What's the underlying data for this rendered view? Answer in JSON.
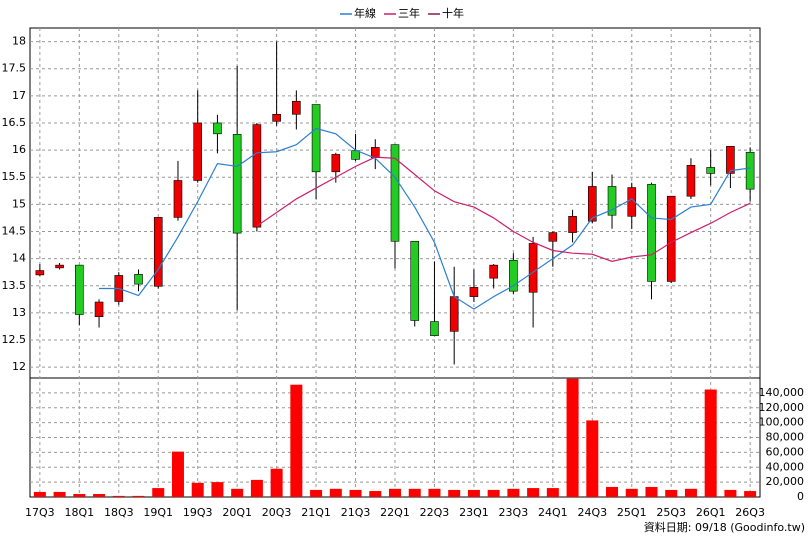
{
  "chart_data": [
    {
      "type": "candlestick",
      "categories": [
        "17Q3",
        null,
        "18Q1",
        null,
        "18Q3",
        null,
        "19Q1",
        null,
        "19Q3",
        null,
        "20Q1",
        null,
        "20Q3",
        null,
        "21Q1",
        null,
        "21Q3",
        null,
        "22Q1",
        null,
        "22Q3",
        null,
        "23Q1",
        null,
        "23Q3",
        null,
        "24Q1",
        null,
        "24Q3",
        null,
        "25Q1",
        null,
        "25Q3",
        null,
        "26Q1",
        null,
        "26Q3"
      ],
      "open": [
        13.7,
        13.83,
        13.88,
        12.93,
        13.21,
        13.71,
        13.49,
        14.76,
        15.44,
        16.5,
        16.29,
        14.58,
        16.53,
        16.66,
        16.84,
        15.6,
        15.99,
        15.86,
        16.1,
        14.32,
        12.84,
        12.66,
        13.3,
        13.64,
        13.97,
        13.38,
        14.32,
        14.48,
        14.69,
        15.33,
        14.78,
        15.37,
        13.58,
        15.15,
        15.68,
        15.57,
        15.96
      ],
      "high": [
        13.9,
        13.92,
        13.88,
        13.25,
        13.75,
        13.8,
        14.76,
        15.8,
        17.1,
        16.65,
        17.55,
        16.5,
        18,
        17.1,
        16.84,
        15.95,
        16.3,
        16.2,
        16.1,
        14.3,
        13.95,
        13.85,
        13.8,
        13.9,
        14.1,
        14.4,
        14.5,
        14.9,
        15.6,
        15.55,
        15.4,
        15.4,
        15.15,
        15.85,
        16,
        16.07,
        16.05
      ],
      "low": [
        13.68,
        13.8,
        12.77,
        12.73,
        13.15,
        13.4,
        13.45,
        14.7,
        15.4,
        15.94,
        13.05,
        14.5,
        16.45,
        16.38,
        15.09,
        15.4,
        15.8,
        15.65,
        13.82,
        12.75,
        12.58,
        12.05,
        13.2,
        13.45,
        13.35,
        12.73,
        13.85,
        14.3,
        14.65,
        14.55,
        14.55,
        13.25,
        13.55,
        15.1,
        15.35,
        15.3,
        15.05
      ],
      "close": [
        13.78,
        13.88,
        12.97,
        13.2,
        13.69,
        13.53,
        14.76,
        15.44,
        16.5,
        16.3,
        14.47,
        16.47,
        16.66,
        16.9,
        15.6,
        15.92,
        15.83,
        16.05,
        14.32,
        12.86,
        12.58,
        13.3,
        13.47,
        13.88,
        13.4,
        14.28,
        14.48,
        14.78,
        15.33,
        14.8,
        15.31,
        13.58,
        15.15,
        15.72,
        15.57,
        16.07,
        15.28
      ],
      "up_color": "#ee0000",
      "down_color": "#22cc22",
      "series": [
        {
          "name": "年線",
          "color": "#2a7fd4",
          "values": [
            null,
            null,
            null,
            13.45,
            13.45,
            13.32,
            13.8,
            14.4,
            15.05,
            15.75,
            15.7,
            15.95,
            15.97,
            16.1,
            16.4,
            16.3,
            16.0,
            15.85,
            15.5,
            14.95,
            14.3,
            13.3,
            13.07,
            13.3,
            13.5,
            13.75,
            14.0,
            14.25,
            14.75,
            14.9,
            15.1,
            14.75,
            14.72,
            14.95,
            15.0,
            15.62,
            15.67
          ]
        },
        {
          "name": "三年",
          "color": "#cc1f6a",
          "values": [
            null,
            null,
            null,
            null,
            null,
            null,
            null,
            null,
            null,
            null,
            null,
            14.6,
            14.85,
            15.1,
            15.3,
            15.5,
            15.7,
            15.87,
            15.85,
            15.55,
            15.25,
            15.05,
            14.95,
            14.75,
            14.5,
            14.3,
            14.15,
            14.1,
            14.08,
            13.95,
            14.03,
            14.07,
            14.3,
            14.48,
            14.65,
            14.85,
            15.02
          ]
        },
        {
          "name": "十年",
          "color": "#8a1a4a",
          "values": [
            null,
            null,
            null,
            null,
            null,
            null,
            null,
            null,
            null,
            null,
            null,
            null,
            null,
            null,
            null,
            null,
            null,
            null,
            null,
            null,
            null,
            null,
            null,
            null,
            null,
            null,
            null,
            null,
            null,
            null,
            null,
            null,
            null,
            null,
            null,
            null,
            null
          ]
        }
      ],
      "ylim": [
        11.8,
        18.25
      ],
      "yticks": [
        12,
        12.5,
        13,
        13.5,
        14,
        14.5,
        15,
        15.5,
        16,
        16.5,
        17,
        17.5,
        18
      ],
      "grid": true
    },
    {
      "type": "bar",
      "color": "#ff0000",
      "values": [
        6800,
        6800,
        4000,
        4000,
        1500,
        1500,
        12000,
        61000,
        19000,
        20000,
        11000,
        23000,
        38000,
        151000,
        9500,
        11000,
        9500,
        8000,
        11000,
        11000,
        11000,
        9500,
        9500,
        9500,
        11000,
        12000,
        12000,
        159000,
        103000,
        13500,
        11000,
        13500,
        9500,
        11000,
        144500,
        9500,
        8000
      ],
      "ylim": [
        0,
        160000
      ],
      "yticks": [
        0,
        {
          "value": 20000,
          "label": "20,000"
        },
        {
          "value": 40000,
          "label": "40,000"
        },
        {
          "value": 60000,
          "label": "60,000"
        },
        {
          "value": 80000,
          "label": "80,000"
        },
        {
          "value": 100000,
          "label": "100,000"
        },
        {
          "value": 120000,
          "label": "120,000"
        },
        {
          "value": 140000,
          "label": "140,000"
        }
      ],
      "grid": true
    }
  ],
  "source": "資料日期: 09/18 (Goodinfo.tw)"
}
